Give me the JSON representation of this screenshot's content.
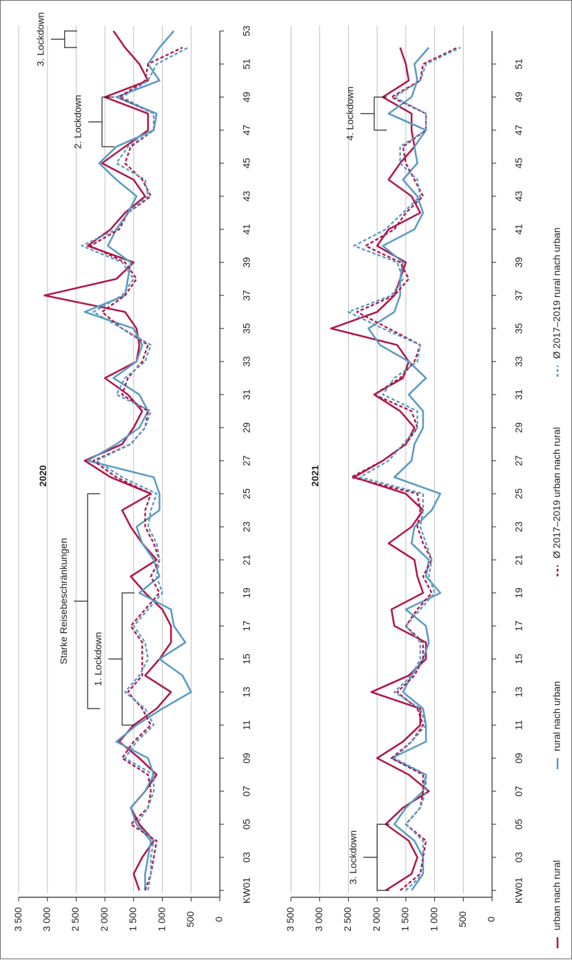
{
  "colors": {
    "urban_to_rural": "#b0184a",
    "rural_to_urban": "#5b9bc4",
    "avg_urban_to_rural": "#b0184a",
    "avg_rural_to_urban": "#5b9bc4",
    "grid": "#bfbfbf",
    "axis": "#222222"
  },
  "legend": {
    "items": [
      {
        "label": "urban nach rural",
        "style": "solid",
        "color_key": "urban_to_rural"
      },
      {
        "label": "rural nach urban",
        "style": "solid",
        "color_key": "rural_to_urban"
      },
      {
        "label": "Ø 2017–2019 urban nach rural",
        "style": "dashed",
        "color_key": "avg_urban_to_rural"
      },
      {
        "label": "Ø 2017–2019 rural nach urban",
        "style": "dashed",
        "color_key": "avg_rural_to_urban"
      }
    ]
  },
  "chart_data": [
    {
      "type": "line",
      "title": "2020",
      "xlabel": "",
      "ylabel": "",
      "orientation": "rotated-90",
      "ylim": [
        0,
        3500
      ],
      "yticks": [
        0,
        500,
        1000,
        1500,
        2000,
        2500,
        3000,
        3500
      ],
      "ytick_labels": [
        "0",
        "500",
        "1 000",
        "1 500",
        "2 000",
        "2 500",
        "3 000",
        "3 500"
      ],
      "xlim": [
        1,
        53
      ],
      "xticks": [
        1,
        3,
        5,
        7,
        9,
        11,
        13,
        15,
        17,
        19,
        21,
        23,
        25,
        27,
        29,
        31,
        33,
        35,
        37,
        39,
        41,
        43,
        45,
        47,
        49,
        51,
        53
      ],
      "xtick_labels": [
        "KW01",
        "03",
        "05",
        "07",
        "09",
        "11",
        "13",
        "15",
        "17",
        "19",
        "21",
        "23",
        "25",
        "27",
        "29",
        "31",
        "33",
        "35",
        "37",
        "39",
        "41",
        "43",
        "45",
        "47",
        "49",
        "51",
        "53"
      ],
      "grid": "horizontal",
      "series": [
        {
          "name": "urban nach rural",
          "key": "u2r",
          "style": "solid",
          "x": [
            1,
            2,
            3,
            4,
            5,
            6,
            7,
            8,
            9,
            10,
            11,
            12,
            13,
            14,
            15,
            16,
            17,
            18,
            19,
            20,
            21,
            22,
            23,
            24,
            25,
            26,
            27,
            28,
            29,
            30,
            31,
            32,
            33,
            34,
            35,
            36,
            37,
            38,
            39,
            40,
            41,
            42,
            43,
            44,
            45,
            46,
            47,
            48,
            49,
            50,
            51,
            52,
            53
          ],
          "values": [
            1400,
            1500,
            1350,
            1150,
            1400,
            1550,
            1300,
            1100,
            1400,
            1750,
            1500,
            1100,
            850,
            1300,
            1050,
            850,
            850,
            1000,
            1300,
            1550,
            1100,
            1350,
            1550,
            1700,
            1200,
            1900,
            2350,
            1700,
            1500,
            1350,
            1600,
            2000,
            1450,
            1400,
            1450,
            1650,
            3050,
            1800,
            1500,
            2300,
            1900,
            1650,
            1300,
            1500,
            2050,
            1650,
            1250,
            1250,
            2000,
            1250,
            1400,
            1650,
            1850
          ]
        },
        {
          "name": "rural nach urban",
          "key": "r2u",
          "style": "solid",
          "x": [
            1,
            2,
            3,
            4,
            5,
            6,
            7,
            8,
            9,
            10,
            11,
            12,
            13,
            14,
            15,
            16,
            17,
            18,
            19,
            20,
            21,
            22,
            23,
            24,
            25,
            26,
            27,
            28,
            29,
            30,
            31,
            32,
            33,
            34,
            35,
            36,
            37,
            38,
            39,
            40,
            41,
            42,
            43,
            44,
            45,
            46,
            47,
            48,
            49,
            50,
            51,
            52,
            53
          ],
          "values": [
            1300,
            1300,
            1250,
            1200,
            1450,
            1550,
            1300,
            1150,
            1250,
            1800,
            1450,
            1000,
            500,
            650,
            1050,
            600,
            800,
            850,
            1400,
            1050,
            1150,
            1350,
            1450,
            1050,
            1050,
            1150,
            2300,
            1800,
            1400,
            1250,
            1400,
            1850,
            1450,
            1350,
            1500,
            2350,
            1650,
            1600,
            1550,
            1950,
            1800,
            1600,
            1450,
            1800,
            2100,
            1800,
            1150,
            1100,
            1800,
            1050,
            1250,
            1050,
            800
          ]
        },
        {
          "name": "Ø 2017–2019 urban nach rural",
          "key": "avg_u2r",
          "style": "dashed",
          "x": [
            1,
            2,
            3,
            4,
            5,
            6,
            7,
            8,
            9,
            10,
            11,
            12,
            13,
            14,
            15,
            16,
            17,
            18,
            19,
            20,
            21,
            22,
            23,
            24,
            25,
            26,
            27,
            28,
            29,
            30,
            31,
            32,
            33,
            34,
            35,
            36,
            37,
            38,
            39,
            40,
            41,
            42,
            43,
            44,
            45,
            46,
            47,
            48,
            49,
            50,
            51,
            52
          ],
          "values": [
            1300,
            1200,
            1150,
            1100,
            1550,
            1250,
            1200,
            1250,
            1700,
            1500,
            1200,
            1350,
            1600,
            1350,
            1350,
            1350,
            1550,
            1300,
            1050,
            1200,
            1050,
            1150,
            1300,
            1300,
            1200,
            1800,
            2200,
            1550,
            1300,
            1250,
            1700,
            1600,
            1350,
            1250,
            1700,
            2050,
            1650,
            1450,
            1650,
            2250,
            1750,
            1600,
            1200,
            1350,
            1650,
            1550,
            1150,
            1150,
            1750,
            1300,
            1250,
            650
          ]
        },
        {
          "name": "Ø 2017–2019 rural nach urban",
          "key": "avg_r2u",
          "style": "dashed",
          "x": [
            1,
            2,
            3,
            4,
            5,
            6,
            7,
            8,
            9,
            10,
            11,
            12,
            13,
            14,
            15,
            16,
            17,
            18,
            19,
            20,
            21,
            22,
            23,
            24,
            25,
            26,
            27,
            28,
            29,
            30,
            31,
            32,
            33,
            34,
            35,
            36,
            37,
            38,
            39,
            40,
            41,
            42,
            43,
            44,
            45,
            46,
            47,
            48,
            49,
            50,
            51,
            52
          ],
          "values": [
            1250,
            1200,
            1200,
            1150,
            1450,
            1250,
            1150,
            1150,
            1650,
            1450,
            1150,
            1300,
            1650,
            1400,
            1250,
            1300,
            1500,
            1250,
            1000,
            1100,
            1050,
            1100,
            1250,
            1200,
            1100,
            1700,
            2150,
            1550,
            1300,
            1200,
            1800,
            1650,
            1300,
            1200,
            1700,
            2200,
            1700,
            1500,
            1700,
            2400,
            1800,
            1600,
            1250,
            1300,
            1800,
            1600,
            1150,
            1150,
            1700,
            1250,
            1100,
            550
          ]
        }
      ],
      "annotations": [
        {
          "text": "1. Lockdown",
          "x_start": 11,
          "x_end": 19,
          "y": 1700
        },
        {
          "text": "Starke Reisebeschränkungen",
          "x_start": 12,
          "x_end": 25,
          "y": 2300
        },
        {
          "text": "2. Lockdown",
          "x_start": 46,
          "x_end": 49,
          "y": 2050
        },
        {
          "text": "3. Lockdown",
          "x_start": 52,
          "x_end": 53,
          "y": 2700
        }
      ]
    },
    {
      "type": "line",
      "title": "2021",
      "xlabel": "",
      "ylabel": "",
      "orientation": "rotated-90",
      "ylim": [
        0,
        3500
      ],
      "yticks": [
        0,
        500,
        1000,
        1500,
        2000,
        2500,
        3000,
        3500
      ],
      "ytick_labels": [
        "0",
        "500",
        "1 000",
        "1 500",
        "2 000",
        "2 500",
        "3 000",
        "3 500"
      ],
      "xlim": [
        1,
        53
      ],
      "xticks": [
        1,
        3,
        5,
        7,
        9,
        11,
        13,
        15,
        17,
        19,
        21,
        23,
        25,
        27,
        29,
        31,
        33,
        35,
        37,
        39,
        41,
        43,
        45,
        47,
        49,
        51
      ],
      "xtick_labels": [
        "KW01",
        "03",
        "05",
        "07",
        "09",
        "11",
        "13",
        "15",
        "17",
        "19",
        "21",
        "23",
        "25",
        "27",
        "29",
        "31",
        "33",
        "35",
        "37",
        "39",
        "41",
        "43",
        "45",
        "47",
        "49",
        "51"
      ],
      "grid": "horizontal",
      "series": [
        {
          "name": "urban nach rural",
          "key": "u2r",
          "style": "solid",
          "x": [
            1,
            2,
            3,
            4,
            5,
            6,
            7,
            8,
            9,
            10,
            11,
            12,
            13,
            14,
            15,
            16,
            17,
            18,
            19,
            20,
            21,
            22,
            23,
            24,
            25,
            26,
            27,
            28,
            29,
            30,
            31,
            32,
            33,
            34,
            35,
            36,
            37,
            38,
            39,
            40,
            41,
            42,
            43,
            44,
            45,
            46,
            47,
            48,
            49,
            50,
            51,
            52
          ],
          "values": [
            1850,
            1400,
            1300,
            1450,
            1850,
            1550,
            1100,
            1450,
            2000,
            1550,
            1250,
            1250,
            2100,
            1450,
            1150,
            1150,
            1700,
            1750,
            1200,
            1300,
            1350,
            1800,
            1400,
            1200,
            1500,
            2400,
            1900,
            1500,
            1350,
            1600,
            2050,
            1550,
            1450,
            1650,
            2800,
            2000,
            1700,
            1600,
            1500,
            2000,
            1800,
            1250,
            1400,
            1800,
            1600,
            1350,
            1400,
            1400,
            1900,
            1450,
            1500,
            1600
          ]
        },
        {
          "name": "rural nach urban",
          "key": "r2u",
          "style": "solid",
          "x": [
            1,
            2,
            3,
            4,
            5,
            6,
            7,
            8,
            9,
            10,
            11,
            12,
            13,
            14,
            15,
            16,
            17,
            18,
            19,
            20,
            21,
            22,
            23,
            24,
            25,
            26,
            27,
            28,
            29,
            30,
            31,
            32,
            33,
            34,
            35,
            36,
            37,
            38,
            39,
            40,
            41,
            42,
            43,
            44,
            45,
            46,
            47,
            48,
            49,
            50,
            51,
            52
          ],
          "values": [
            1400,
            1200,
            1200,
            1350,
            1700,
            1500,
            1200,
            1150,
            1750,
            1150,
            1150,
            1200,
            1550,
            1400,
            1200,
            1100,
            1150,
            1500,
            900,
            1150,
            1100,
            1400,
            1350,
            1050,
            900,
            1700,
            1400,
            1350,
            1200,
            1200,
            1450,
            1150,
            1450,
            1950,
            2150,
            1700,
            1600,
            1600,
            1550,
            1900,
            1350,
            1200,
            1300,
            1550,
            1300,
            1350,
            1150,
            1800,
            1400,
            1300,
            1350,
            1100
          ]
        },
        {
          "name": "Ø 2017–2019 urban nach rural",
          "key": "avg_u2r",
          "style": "dashed",
          "x": [
            1,
            2,
            3,
            4,
            5,
            6,
            7,
            8,
            9,
            10,
            11,
            12,
            13,
            14,
            15,
            16,
            17,
            18,
            19,
            20,
            21,
            22,
            23,
            24,
            25,
            26,
            27,
            28,
            29,
            30,
            31,
            32,
            33,
            34,
            35,
            36,
            37,
            38,
            39,
            40,
            41,
            42,
            43,
            44,
            45,
            46,
            47,
            48,
            49,
            50,
            51,
            52
          ],
          "values": [
            1600,
            1250,
            1200,
            1150,
            1500,
            1250,
            1200,
            1200,
            1750,
            1400,
            1200,
            1300,
            1650,
            1350,
            1200,
            1200,
            1500,
            1300,
            1050,
            1200,
            1050,
            1200,
            1300,
            1250,
            1300,
            2450,
            1900,
            1500,
            1300,
            1400,
            2050,
            1600,
            1350,
            1250,
            1800,
            2350,
            1700,
            1450,
            1600,
            2200,
            1700,
            1500,
            1200,
            1350,
            1500,
            1550,
            1150,
            1150,
            1750,
            1250,
            1200,
            600
          ]
        },
        {
          "name": "Ø 2017–2019 rural nach urban",
          "key": "avg_r2u",
          "style": "dashed",
          "x": [
            1,
            2,
            3,
            4,
            5,
            6,
            7,
            8,
            9,
            10,
            11,
            12,
            13,
            14,
            15,
            16,
            17,
            18,
            19,
            20,
            21,
            22,
            23,
            24,
            25,
            26,
            27,
            28,
            29,
            30,
            31,
            32,
            33,
            34,
            35,
            36,
            37,
            38,
            39,
            40,
            41,
            42,
            43,
            44,
            45,
            46,
            47,
            48,
            49,
            50,
            51,
            52
          ],
          "values": [
            1500,
            1200,
            1200,
            1200,
            1500,
            1250,
            1150,
            1150,
            1700,
            1400,
            1150,
            1250,
            1700,
            1400,
            1250,
            1250,
            1500,
            1250,
            1000,
            1100,
            1050,
            1150,
            1250,
            1200,
            1200,
            2300,
            1800,
            1550,
            1300,
            1300,
            1900,
            1700,
            1300,
            1250,
            1900,
            2500,
            1750,
            1550,
            1650,
            2400,
            1850,
            1550,
            1250,
            1300,
            1600,
            1600,
            1150,
            1150,
            1700,
            1250,
            1150,
            550
          ]
        }
      ],
      "annotations": [
        {
          "text": "3. Lockdown",
          "x_start": 1,
          "x_end": 5,
          "y": 2000
        },
        {
          "text": "4. Lockdown",
          "x_start": 47,
          "x_end": 49,
          "y": 2050
        }
      ]
    }
  ]
}
